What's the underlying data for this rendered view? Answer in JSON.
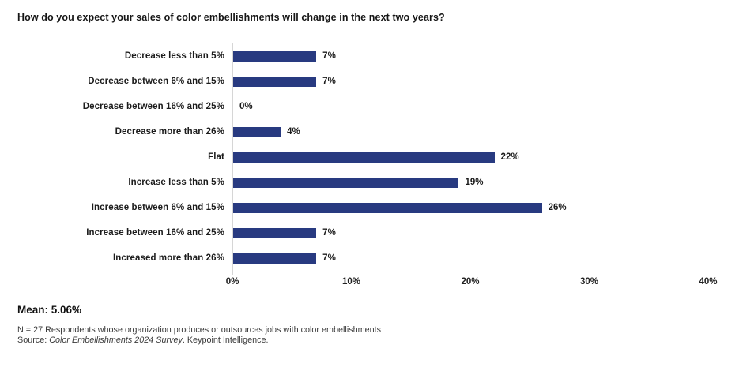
{
  "title": "How do you expect your sales of color embellishments will change in the next two years?",
  "chart_data": {
    "type": "bar",
    "orientation": "horizontal",
    "title": "How do you expect your sales of color embellishments will change in the next two years?",
    "categories": [
      "Decrease less than 5%",
      "Decrease between 6% and 15%",
      "Decrease between 16% and 25%",
      "Decrease more than 26%",
      "Flat",
      "Increase less than 5%",
      "Increase between 6% and 15%",
      "Increase between 16% and 25%",
      "Increased more than 26%"
    ],
    "values": [
      7,
      7,
      0,
      4,
      22,
      19,
      26,
      7,
      7
    ],
    "value_labels": [
      "7%",
      "7%",
      "0%",
      "4%",
      "22%",
      "19%",
      "26%",
      "7%",
      "7%"
    ],
    "x_tick_labels": [
      "0%",
      "10%",
      "20%",
      "30%",
      "40%"
    ],
    "x_tick_values": [
      0,
      10,
      20,
      30,
      40
    ],
    "xlim": [
      0,
      40
    ],
    "xlabel": "",
    "ylabel": "",
    "grid": "off",
    "legend": "none",
    "bar_color": "#283a80",
    "axis_line_color": "#d6d6d6"
  },
  "mean_label": "Mean: 5.06%",
  "footnote": {
    "line1": "N = 27 Respondents whose organization produces or outsources jobs with color embellishments",
    "source_prefix": "Source: ",
    "source_italic": "Color Embellishments 2024 Survey",
    "source_suffix": ". Keypoint Intelligence."
  }
}
